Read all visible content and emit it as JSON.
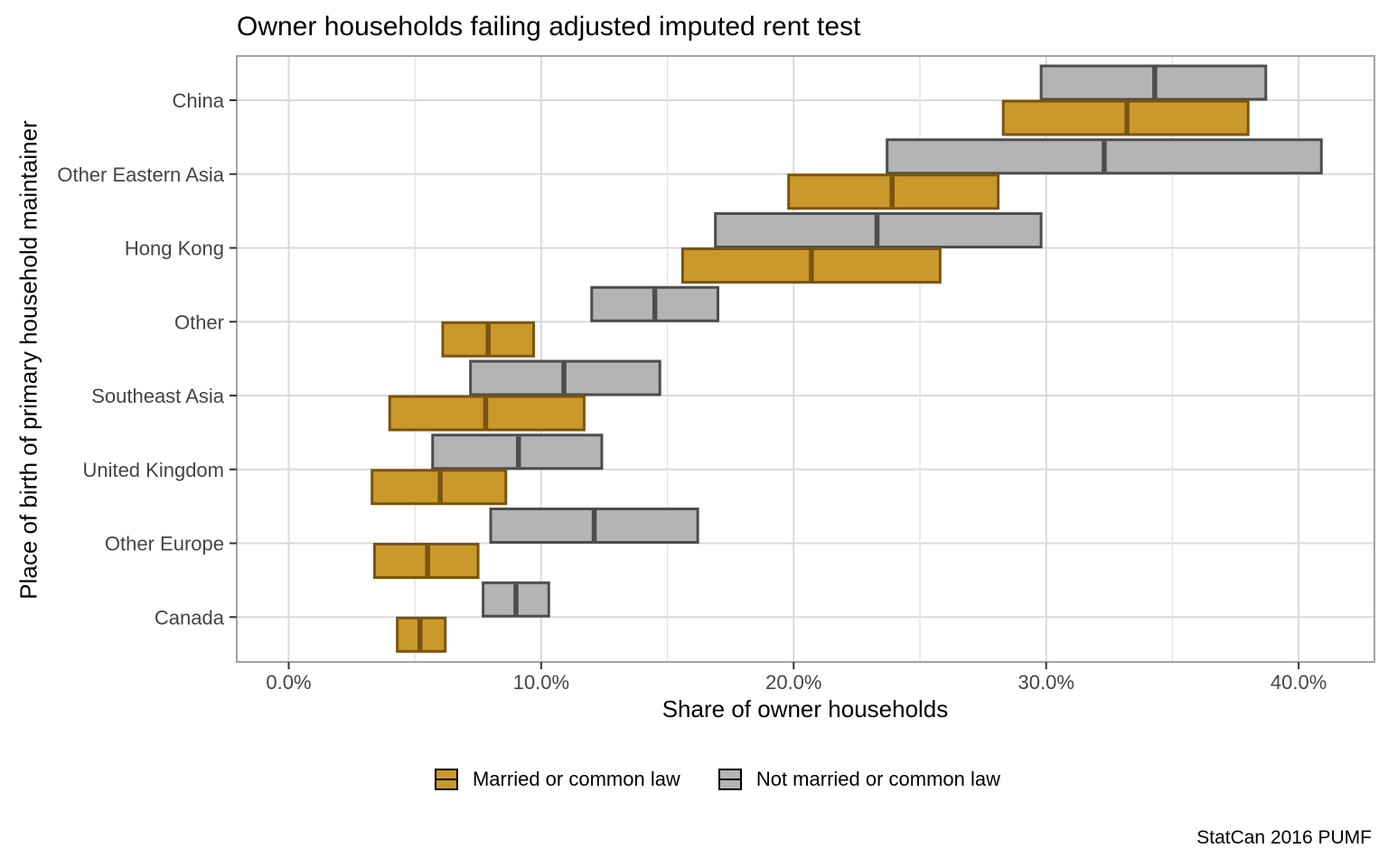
{
  "title": "Owner households failing adjusted imputed rent test",
  "caption": "StatCan 2016 PUMF",
  "chart_data": {
    "type": "crossbar",
    "title": "Owner households failing adjusted imputed rent test",
    "xlabel": "Share of owner households",
    "ylabel": "Place of birth of primary household maintainer",
    "caption": "StatCan 2016 PUMF",
    "categories": [
      "China",
      "Other Eastern Asia",
      "Hong Kong",
      "Other",
      "Southeast Asia",
      "United Kingdom",
      "Other Europe",
      "Canada"
    ],
    "x_ticks": [
      {
        "value": 0,
        "label": "0.0%"
      },
      {
        "value": 10,
        "label": "10.0%"
      },
      {
        "value": 20,
        "label": "20.0%"
      },
      {
        "value": 30,
        "label": "30.0%"
      },
      {
        "value": 40,
        "label": "40.0%"
      }
    ],
    "x_minor_ticks": [
      5,
      15,
      25,
      35
    ],
    "xlim": [
      -2.1,
      43.0
    ],
    "grid": true,
    "legend_position": "bottom",
    "value_format": "[lower, midpoint, upper] in percent of owner households",
    "series": [
      {
        "name": "Not married or common law",
        "fill": "#B4B4B4",
        "stroke": "#4D4D4D",
        "values": [
          [
            29.8,
            34.3,
            38.7
          ],
          [
            23.7,
            32.3,
            40.9
          ],
          [
            16.9,
            23.3,
            29.8
          ],
          [
            12.0,
            14.5,
            17.0
          ],
          [
            7.2,
            10.9,
            14.7
          ],
          [
            5.7,
            9.1,
            12.4
          ],
          [
            8.0,
            12.1,
            16.2
          ],
          [
            7.7,
            9.0,
            10.3
          ]
        ]
      },
      {
        "name": "Married or common law",
        "fill": "#C9992B",
        "stroke": "#7B540E",
        "values": [
          [
            28.3,
            33.2,
            38.0
          ],
          [
            19.8,
            23.9,
            28.1
          ],
          [
            15.6,
            20.7,
            25.8
          ],
          [
            6.1,
            7.9,
            9.7
          ],
          [
            4.0,
            7.8,
            11.7
          ],
          [
            3.3,
            6.0,
            8.6
          ],
          [
            3.4,
            5.5,
            7.5
          ],
          [
            4.3,
            5.2,
            6.2
          ]
        ]
      }
    ],
    "colors": {
      "married_fill": "#C9992B",
      "married_stroke": "#7B540E",
      "not_married_fill": "#B4B4B4",
      "not_married_stroke": "#4D4D4D",
      "gridline": "#DADADA",
      "panel_border": "#A3A3A3",
      "tick_text": "#444444"
    }
  },
  "legend": {
    "items": [
      {
        "label": "Married or common law",
        "fill": "#C9992B"
      },
      {
        "label": "Not married or common law",
        "fill": "#B4B4B4"
      }
    ]
  }
}
